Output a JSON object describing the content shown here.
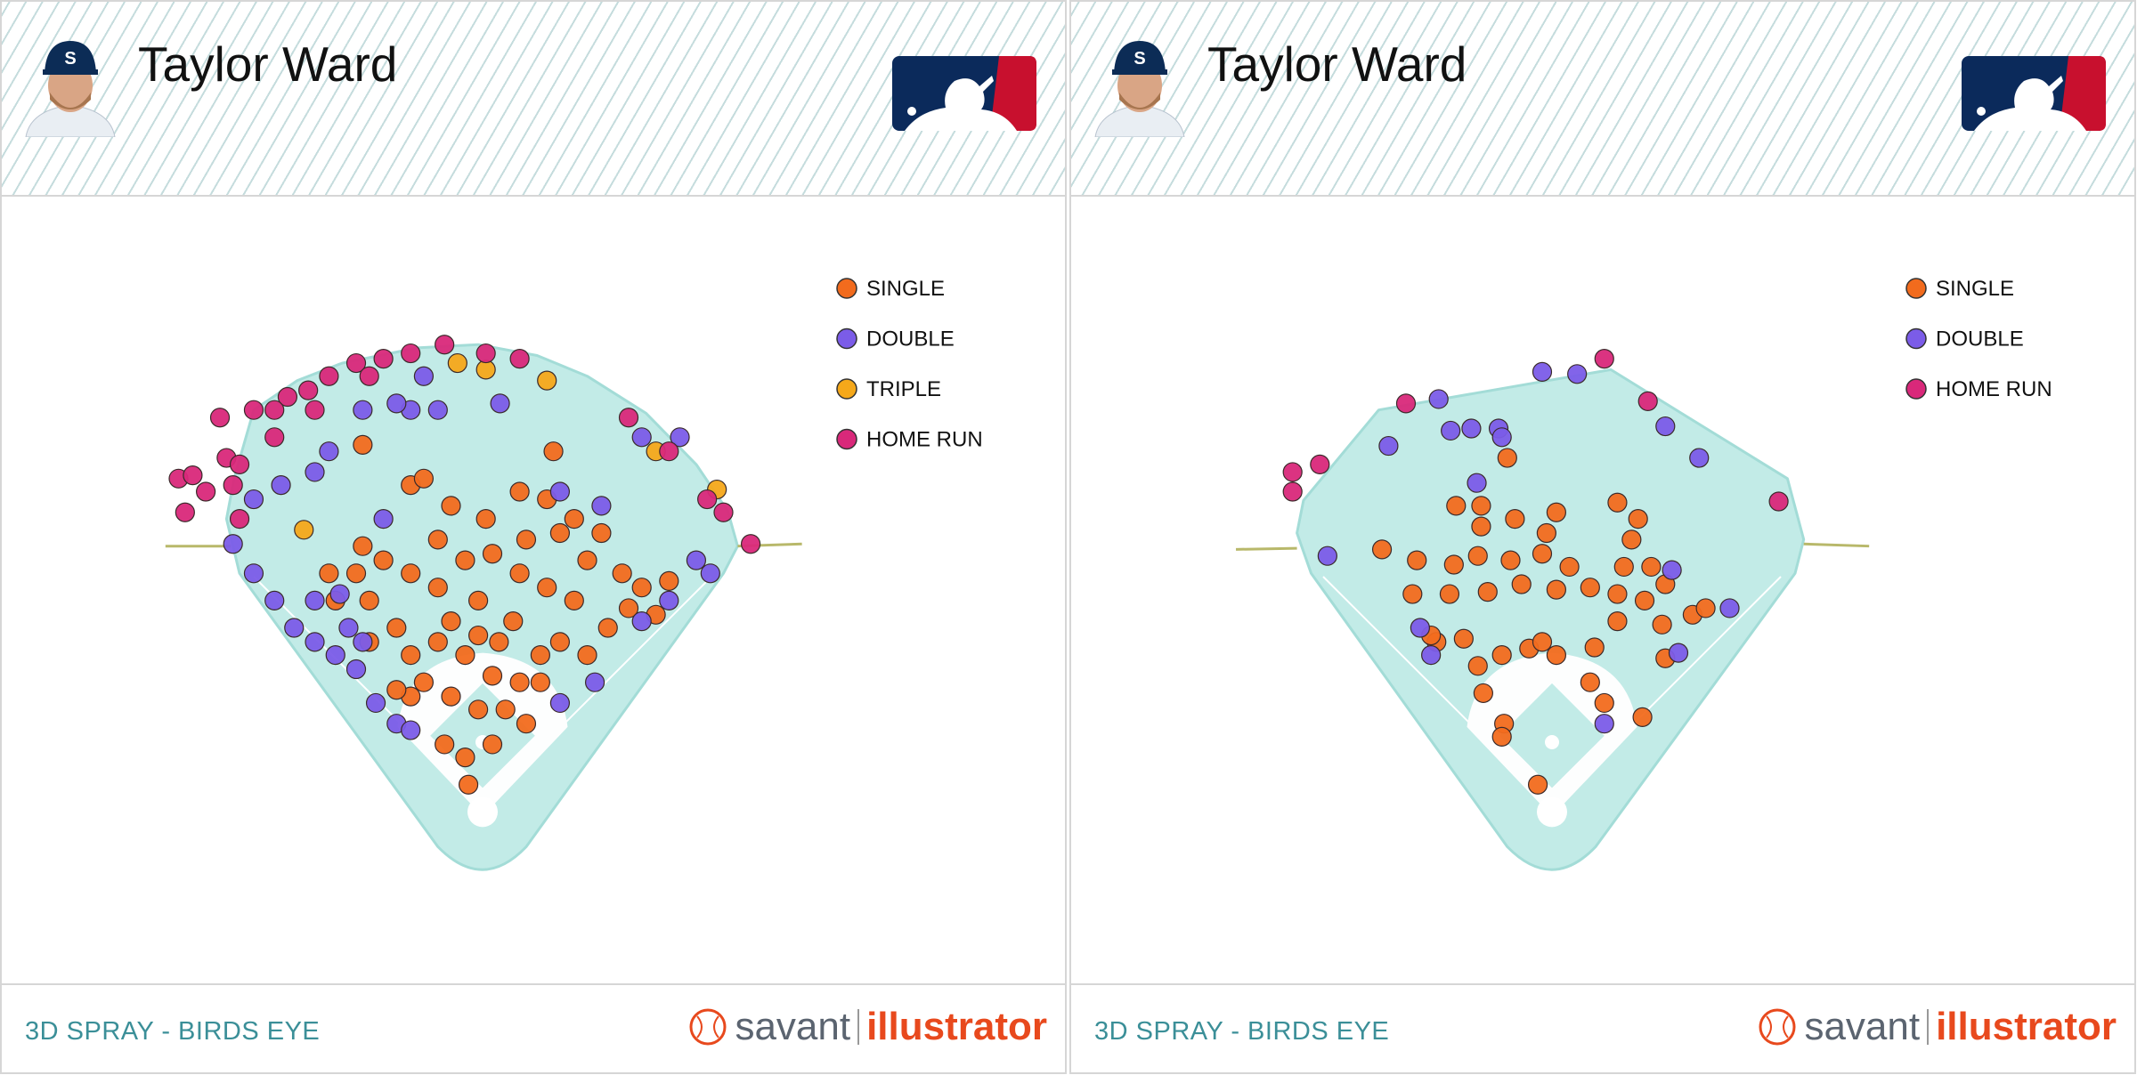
{
  "chart_data": [
    {
      "type": "scatter",
      "title": "Taylor Ward",
      "caption": "3D SPRAY - BIRDS EYE",
      "brand": {
        "name": "savant",
        "product": "illustrator"
      },
      "legend": "right",
      "series": [
        {
          "name": "SINGLE",
          "color": "#f26b1d",
          "x": [
            -66,
            -54,
            -29,
            3,
            34,
            59,
            84,
            109,
            128,
            146,
            159,
            115,
            96,
            71,
            53,
            34,
            9,
            -16,
            -41,
            -66,
            -79,
            -104,
            -116,
            -110,
            -91,
            -66,
            -41,
            -16,
            9,
            34,
            59,
            84,
            -4,
            -29,
            -54,
            -29,
            -4,
            21,
            40,
            9,
            -16,
            -13,
            -35,
            -66,
            65,
            40,
            71,
            96,
            -141,
            -135,
            -104,
            -4,
            15,
            28,
            134,
            171,
            -110,
            -79,
            53,
            -41
          ],
          "y": [
            294,
            300,
            275,
            263,
            288,
            281,
            263,
            250,
            213,
            200,
            175,
            163,
            138,
            150,
            138,
            113,
            119,
            138,
            150,
            138,
            163,
            188,
            213,
            238,
            225,
            213,
            200,
            225,
            231,
            213,
            200,
            188,
            188,
            169,
            113,
            100,
            88,
            88,
            75,
            56,
            44,
            19,
            56,
            100,
            325,
            244,
            250,
            225,
            213,
            188,
            150,
            156,
            150,
            169,
            181,
            206,
            331,
            106,
            113,
            244
          ]
        },
        {
          "name": "DOUBLE",
          "color": "#7b5ce8",
          "x": [
            -229,
            -210,
            -191,
            -173,
            -154,
            -135,
            -116,
            -98,
            -79,
            -66,
            71,
            103,
            146,
            171,
            196,
            209,
            181,
            146,
            -41,
            -66,
            -79,
            -54,
            -110,
            -141,
            -154,
            -185,
            -210,
            16,
            71,
            109,
            -91,
            -154,
            -131,
            -123,
            -110
          ],
          "y": [
            240,
            213,
            188,
            163,
            150,
            138,
            125,
            94,
            75,
            69,
            94,
            113,
            169,
            188,
            225,
            213,
            338,
            338,
            363,
            363,
            369,
            394,
            363,
            325,
            306,
            294,
            281,
            369,
            288,
            275,
            263,
            188,
            194,
            163,
            150
          ]
        },
        {
          "name": "TRIPLE",
          "color": "#f5a81a",
          "x": [
            -23,
            3,
            59,
            159,
            215,
            -164
          ],
          "y": [
            406,
            400,
            390,
            325,
            290,
            253
          ]
        },
        {
          "name": "HOME RUN",
          "color": "#d9287a",
          "x": [
            -279,
            -266,
            -273,
            -241,
            -235,
            -223,
            -210,
            -191,
            -179,
            -160,
            -141,
            -116,
            -91,
            -66,
            -35,
            3,
            34,
            -191,
            -254,
            134,
            171,
            206,
            221,
            246,
            -223,
            -229,
            -154,
            -104
          ],
          "y": [
            300,
            303,
            269,
            356,
            319,
            313,
            363,
            338,
            375,
            381,
            394,
            406,
            410,
            415,
            423,
            415,
            410,
            363,
            288,
            356,
            325,
            281,
            269,
            240,
            263,
            294,
            363,
            394
          ]
        }
      ]
    },
    {
      "type": "scatter",
      "title": "Taylor Ward",
      "caption": "3D SPRAY - BIRDS EYE",
      "brand": {
        "name": "savant",
        "product": "illustrator"
      },
      "legend": "right",
      "series": [
        {
          "name": "SINGLE",
          "color": "#f26b1d",
          "x": [
            -41,
            -88,
            -65,
            -34,
            -5,
            4,
            60,
            79,
            73,
            -156,
            -124,
            -90,
            -68,
            -38,
            -9,
            16,
            35,
            66,
            91,
            104,
            -128,
            -94,
            -59,
            -28,
            4,
            60,
            85,
            60,
            101,
            129,
            141,
            -106,
            -81,
            -46,
            -21,
            -9,
            4,
            39,
            -68,
            -63,
            35,
            48,
            83,
            -44,
            -46,
            -13,
            104,
            -111,
            -65
          ],
          "y": [
            319,
            275,
            256,
            263,
            250,
            269,
            278,
            263,
            244,
            235,
            225,
            221,
            229,
            225,
            231,
            219,
            200,
            219,
            219,
            203,
            194,
            194,
            196,
            203,
            198,
            194,
            188,
            169,
            166,
            175,
            181,
            150,
            153,
            138,
            144,
            150,
            138,
            145,
            128,
            103,
            113,
            94,
            81,
            75,
            63,
            19,
            135,
            156,
            275
          ]
        },
        {
          "name": "DOUBLE",
          "color": "#7b5ce8",
          "x": [
            -206,
            -150,
            -104,
            -93,
            -74,
            -49,
            -46,
            -69,
            -9,
            23,
            104,
            135,
            163,
            110,
            116,
            -121,
            -111,
            48
          ],
          "y": [
            229,
            330,
            373,
            344,
            346,
            346,
            338,
            296,
            398,
            396,
            348,
            319,
            181,
            216,
            140,
            163,
            138,
            75
          ]
        },
        {
          "name": "HOME RUN",
          "color": "#d9287a",
          "x": [
            -238,
            -238,
            -213,
            -134,
            48,
            88,
            208
          ],
          "y": [
            306,
            288,
            313,
            369,
            410,
            371,
            279
          ]
        }
      ]
    }
  ]
}
